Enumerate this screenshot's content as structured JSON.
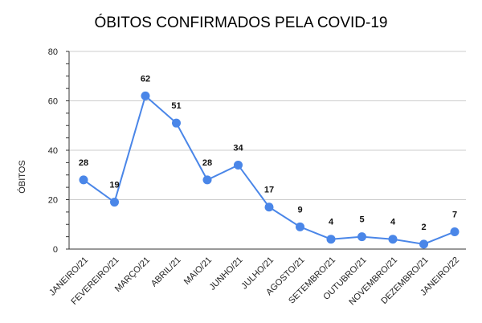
{
  "chart_data": {
    "type": "line",
    "title": "ÓBITOS CONFIRMADOS PELA COVID-19",
    "xlabel": "",
    "ylabel": "ÓBITOS",
    "categories": [
      "JANEIRO/21",
      "FEVEREIRO/21",
      "MARÇO/21",
      "ABRIL/21",
      "MAIO/21",
      "JUNHO/21",
      "JULHO/21",
      "AGOSTO/21",
      "SETEMBRO/21",
      "OUTUBRO/21",
      "NOVEMBRO/21",
      "DEZEMBRO/21",
      "JANEIRO/22"
    ],
    "series": [
      {
        "values": [
          28,
          19,
          62,
          51,
          28,
          34,
          17,
          9,
          4,
          5,
          4,
          2,
          7
        ]
      }
    ],
    "data_labels": [
      "28",
      "19",
      "62",
      "51",
      "28",
      "34",
      "17",
      "9",
      "4",
      "5",
      "4",
      "2",
      "7"
    ],
    "ylim": [
      0,
      80
    ],
    "yticks": [
      "0",
      "20",
      "40",
      "60",
      "80"
    ],
    "grid": true,
    "line_color": "#4a86e8",
    "grid_color": "#cccccc"
  }
}
